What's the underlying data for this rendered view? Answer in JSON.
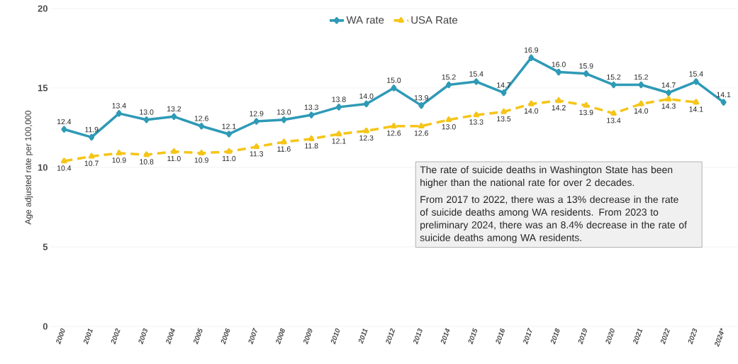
{
  "chart_data": {
    "type": "line",
    "ylabel": "Age adjusted rate  per 100,000",
    "categories": [
      "2000",
      "2001",
      "2002",
      "2003",
      "2004",
      "2005",
      "2006",
      "2007",
      "2008",
      "2009",
      "2010",
      "2011",
      "2012",
      "2013",
      "2014",
      "2015",
      "2016",
      "2017",
      "2018",
      "2019",
      "2020",
      "2021",
      "2022",
      "2023",
      "2024*"
    ],
    "series": [
      {
        "name": "WA rate",
        "color": "#2e9ab6",
        "marker": "diamond",
        "line_style": "solid",
        "values": [
          12.4,
          11.9,
          13.4,
          13.0,
          13.2,
          12.6,
          12.1,
          12.9,
          13.0,
          13.3,
          13.8,
          14.0,
          15.0,
          13.9,
          15.2,
          15.4,
          14.7,
          16.9,
          16.0,
          15.9,
          15.2,
          15.2,
          14.7,
          15.4,
          14.1
        ],
        "value_labels": [
          "12.4",
          "11.9",
          "13.4",
          "13.0",
          "13.2",
          "12.6",
          "12.1",
          "12.9",
          "13.0",
          "13.3",
          "13.8",
          "14.0",
          "15.0",
          "13.9",
          "15.2",
          "15.4",
          "14.7",
          "16.9",
          "16.0",
          "15.9",
          "15.2",
          "15.2",
          "14.7",
          "15.4",
          "14.1"
        ]
      },
      {
        "name": "USA Rate",
        "color": "#f5c518",
        "marker": "triangle",
        "line_style": "dashed",
        "values": [
          10.4,
          10.7,
          10.9,
          10.8,
          11.0,
          10.9,
          11.0,
          11.3,
          11.6,
          11.8,
          12.1,
          12.3,
          12.6,
          12.6,
          13.0,
          13.3,
          13.5,
          14.0,
          14.2,
          13.9,
          13.4,
          14.0,
          14.3,
          14.1,
          null
        ],
        "value_labels": [
          "10.4",
          "10.7",
          "10.9",
          "10.8",
          "11.0",
          "10.9",
          "11.0",
          "11.3",
          "11.6",
          "11.8",
          "12.1",
          "12.3",
          "12.6",
          "12.6",
          "13.0",
          "13.3",
          "13.5",
          "14.0",
          "14.2",
          "13.9",
          "13.4",
          "14.0",
          "14.3",
          "14.1",
          null
        ]
      }
    ],
    "ylim": [
      0,
      20
    ],
    "yticks": [
      0,
      5,
      10,
      15,
      20
    ],
    "grid": "y",
    "legend": "top",
    "annotations": [
      "The rate of suicide deaths in Washington State has been higher than the national rate for over 2 decades.",
      "From 2017 to 2022, there was a 13% decrease in the rate of suicide deaths among WA residents. From 2023 to preliminary 2024, there was an 8.4% decrease in the rate of suicide deaths among WA residents."
    ]
  }
}
